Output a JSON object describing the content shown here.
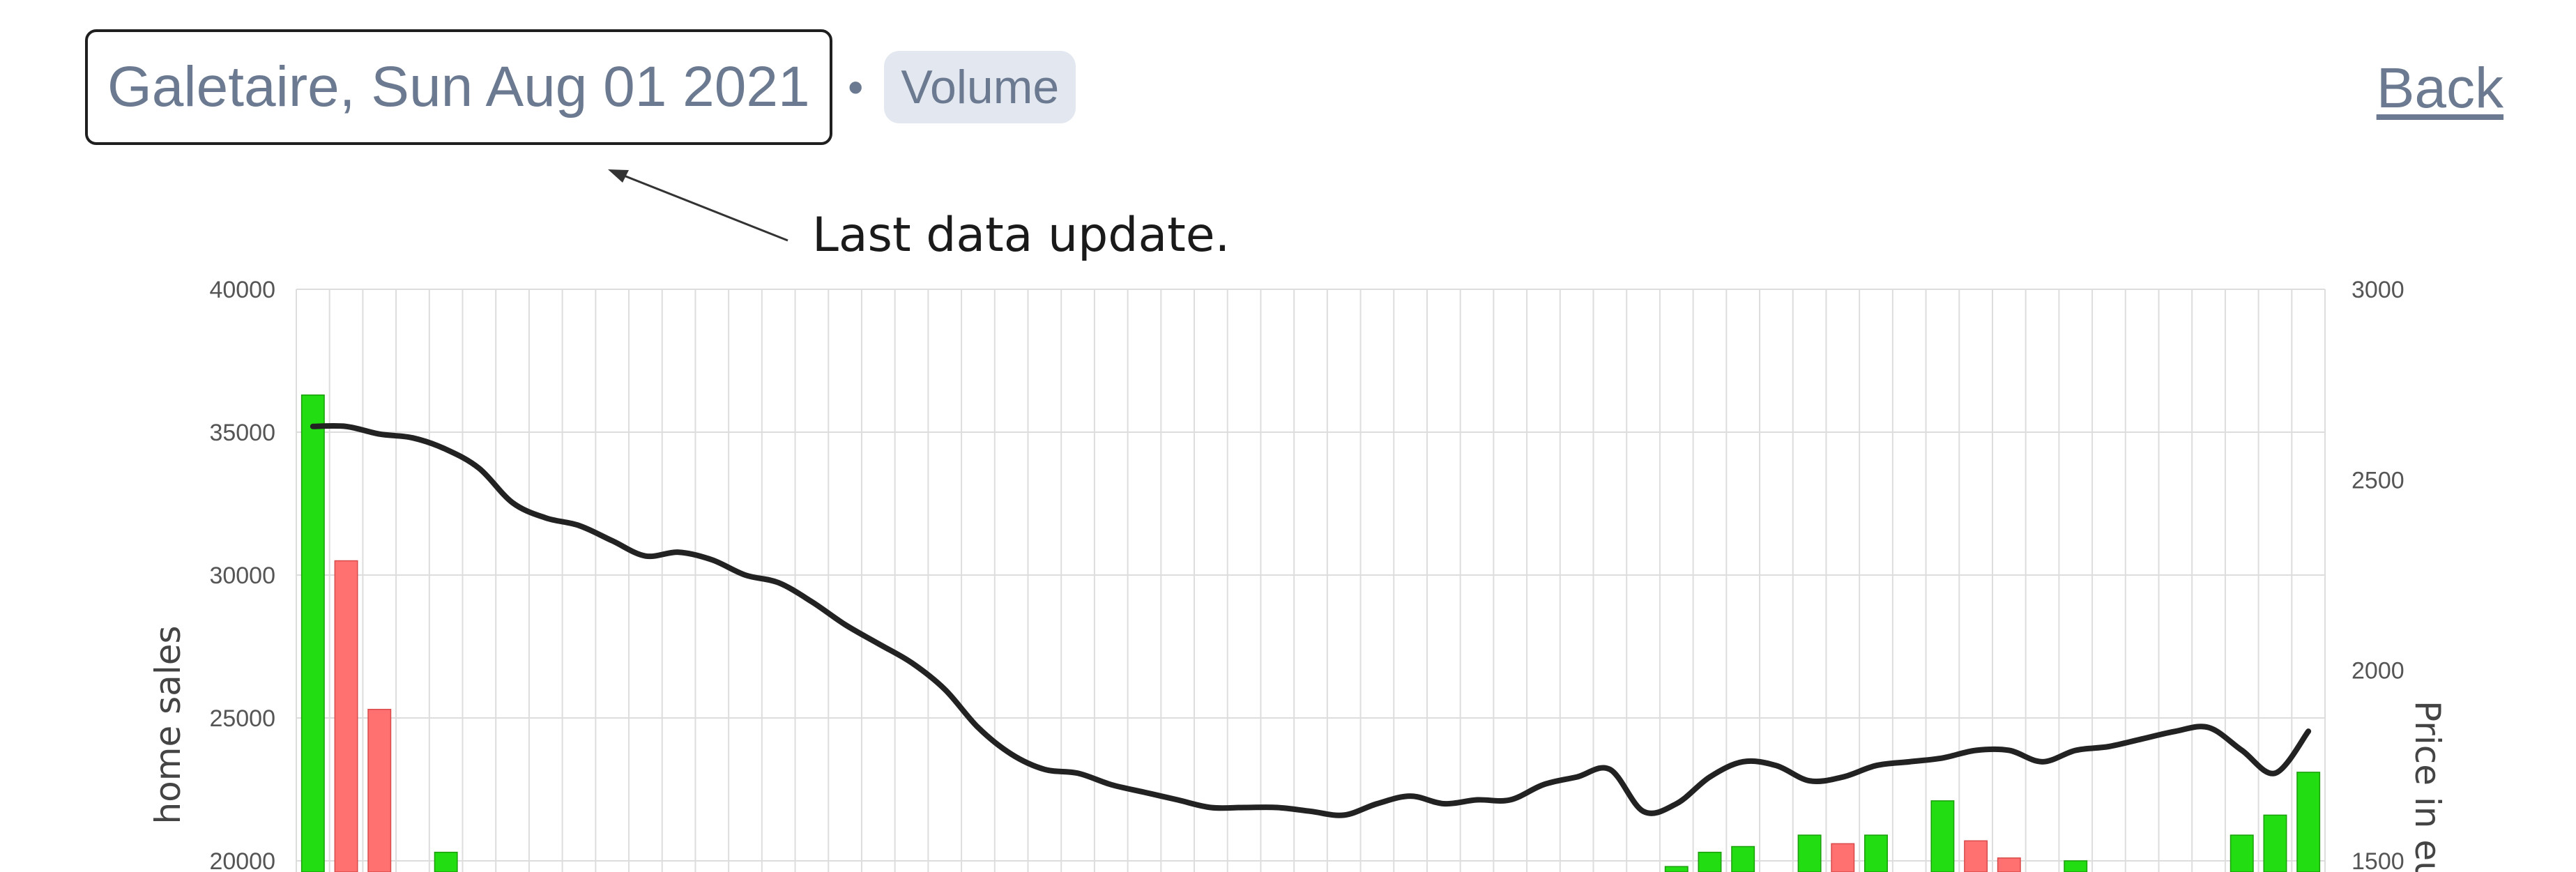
{
  "header": {
    "title": "Galetaire, Sun Aug 01 2021",
    "separator": "•",
    "badge": "Volume",
    "back_label": "Back"
  },
  "annotation": {
    "text": "Last data update."
  },
  "colors": {
    "up_bar": "#22dd11",
    "down_bar": "#ff7070",
    "price_line": "#222222",
    "grid": "#dddddd",
    "text_muted": "#6b7a90"
  },
  "chart_data": {
    "type": "bar",
    "ylabel": "home sales",
    "y2label": "Price in eu",
    "ylim": [
      20000,
      40000
    ],
    "y2lim": [
      1500,
      3000
    ],
    "yticks": [
      40000,
      35000,
      30000,
      25000,
      20000
    ],
    "y2ticks": [
      3000,
      2500,
      2000,
      1500
    ],
    "grid": true,
    "series": [
      {
        "kind": "bar",
        "values": [
          36300,
          30500,
          25300,
          null,
          20300,
          null,
          null,
          null,
          null,
          null,
          null,
          null,
          null,
          null,
          null,
          null,
          null,
          null,
          null,
          null,
          null,
          null,
          null,
          null,
          null,
          null,
          null,
          null,
          null,
          null,
          null,
          null,
          null,
          null,
          null,
          null,
          null,
          null,
          null,
          null,
          null,
          19800,
          20300,
          20500,
          null,
          20900,
          20600,
          20900,
          null,
          22100,
          20700,
          20100,
          null,
          20000,
          null,
          null,
          null,
          null,
          20900,
          21600,
          23100
        ],
        "directions": [
          "up",
          "down",
          "down",
          null,
          "up",
          null,
          null,
          null,
          null,
          null,
          null,
          null,
          null,
          null,
          null,
          null,
          null,
          null,
          null,
          null,
          null,
          null,
          null,
          null,
          null,
          null,
          null,
          null,
          null,
          null,
          null,
          null,
          null,
          null,
          null,
          null,
          null,
          null,
          null,
          null,
          null,
          "up",
          "up",
          "up",
          null,
          "up",
          "down",
          "up",
          null,
          "up",
          "down",
          "down",
          null,
          "up",
          null,
          null,
          null,
          null,
          "up",
          "up",
          "up"
        ]
      },
      {
        "kind": "line",
        "values": [
          2640,
          2640,
          2620,
          2610,
          2580,
          2530,
          2440,
          2400,
          2380,
          2340,
          2300,
          2310,
          2290,
          2250,
          2230,
          2180,
          2120,
          2070,
          2020,
          1950,
          1850,
          1780,
          1740,
          1730,
          1700,
          1680,
          1660,
          1640,
          1640,
          1640,
          1630,
          1620,
          1650,
          1670,
          1650,
          1660,
          1660,
          1700,
          1720,
          1740,
          1630,
          1650,
          1720,
          1760,
          1750,
          1710,
          1720,
          1750,
          1760,
          1770,
          1790,
          1790,
          1760,
          1790,
          1800,
          1820,
          1840,
          1850,
          1790,
          1730,
          1840
        ]
      }
    ]
  }
}
